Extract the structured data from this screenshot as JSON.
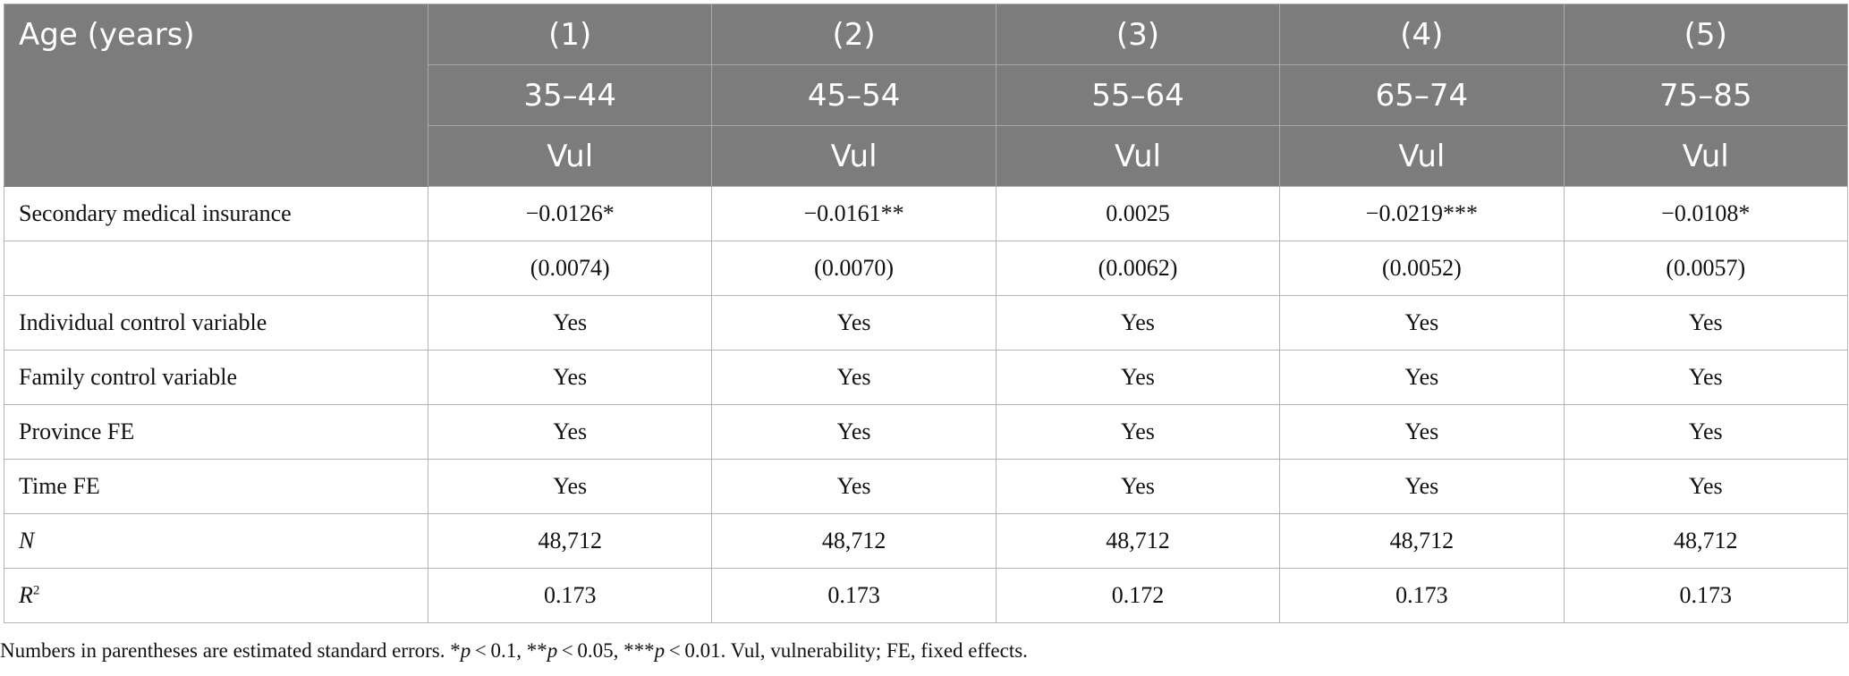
{
  "header": {
    "lead_label": "Age (years)",
    "model_numbers": [
      "(1)",
      "(2)",
      "(3)",
      "(4)",
      "(5)"
    ],
    "age_ranges": [
      "35–44",
      "45–54",
      "55–64",
      "65–74",
      "75–85"
    ],
    "dependent_vars": [
      "Vul",
      "Vul",
      "Vul",
      "Vul",
      "Vul"
    ]
  },
  "rows": [
    {
      "label": "Secondary medical insurance",
      "values": [
        "−0.0126*",
        "−0.0161**",
        "0.0025",
        "−0.0219***",
        "−0.0108*"
      ]
    },
    {
      "label": "",
      "values": [
        "(0.0074)",
        "(0.0070)",
        "(0.0062)",
        "(0.0052)",
        "(0.0057)"
      ]
    },
    {
      "label": "Individual control variable",
      "values": [
        "Yes",
        "Yes",
        "Yes",
        "Yes",
        "Yes"
      ]
    },
    {
      "label": "Family control variable",
      "values": [
        "Yes",
        "Yes",
        "Yes",
        "Yes",
        "Yes"
      ]
    },
    {
      "label": "Province FE",
      "values": [
        "Yes",
        "Yes",
        "Yes",
        "Yes",
        "Yes"
      ]
    },
    {
      "label": "Time FE",
      "values": [
        "Yes",
        "Yes",
        "Yes",
        "Yes",
        "Yes"
      ]
    },
    {
      "label": "N",
      "values": [
        "48,712",
        "48,712",
        "48,712",
        "48,712",
        "48,712"
      ]
    },
    {
      "label": "R",
      "label_sup": "2",
      "values": [
        "0.173",
        "0.173",
        "0.172",
        "0.173",
        "0.173"
      ]
    }
  ],
  "footnote": {
    "t1": "Numbers in parentheses are estimated standard errors. *",
    "p1": "p",
    "t2": " < 0.1, **",
    "p2": "p",
    "t3": " < 0.05, ***",
    "p3": "p",
    "t4": " < 0.01. Vul, vulnerability; FE, fixed effects."
  }
}
